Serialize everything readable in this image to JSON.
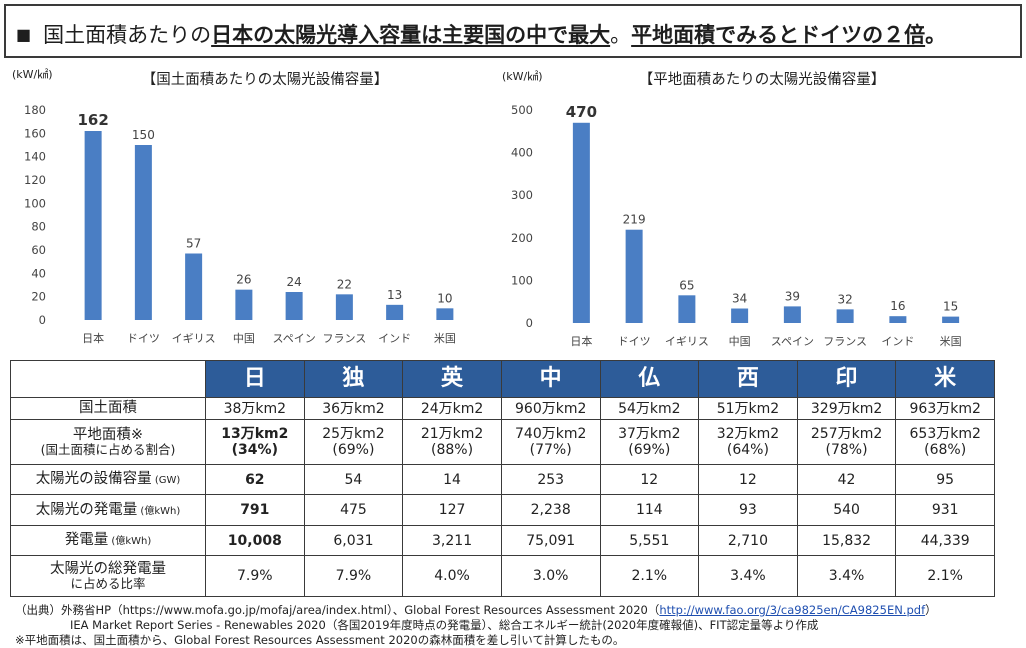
{
  "header": {
    "marker": "■",
    "part1": "国土面積あたりの",
    "part2": "日本の太陽光導入容量は主要国の中で最大",
    "part3": "。",
    "part4": "平地面積でみるとドイツの２倍",
    "part5": "。"
  },
  "chart_data": [
    {
      "type": "bar",
      "title": "【国土面積あたりの太陽光設備容量】",
      "unit": "(kW/㎢)",
      "categories": [
        "日本",
        "ドイツ",
        "イギリス",
        "中国",
        "スペイン",
        "フランス",
        "インド",
        "米国"
      ],
      "values": [
        162,
        150,
        57,
        26,
        24,
        22,
        13,
        10
      ],
      "value_labels": [
        "162",
        "150",
        "57",
        "26",
        "24",
        "22",
        "13",
        "10"
      ],
      "ylim": [
        0,
        180
      ],
      "yticks": [
        0,
        20,
        40,
        60,
        80,
        100,
        120,
        140,
        160,
        180
      ],
      "highlight_first": true,
      "color": "#4a7ec4"
    },
    {
      "type": "bar",
      "title": "【平地面積あたりの太陽光設備容量】",
      "unit": "(kW/㎢)",
      "categories": [
        "日本",
        "ドイツ",
        "イギリス",
        "中国",
        "スペイン",
        "フランス",
        "インド",
        "米国"
      ],
      "values": [
        470,
        219,
        65,
        34,
        39,
        32,
        16,
        15
      ],
      "value_labels": [
        "470",
        "219",
        "65",
        "34",
        "39",
        "32",
        "16",
        "15"
      ],
      "ylim": [
        0,
        500
      ],
      "yticks": [
        0,
        100,
        200,
        300,
        400,
        500
      ],
      "highlight_first": true,
      "color": "#4a7ec4"
    }
  ],
  "table": {
    "countries": [
      "日",
      "独",
      "英",
      "中",
      "仏",
      "西",
      "印",
      "米"
    ],
    "rows": [
      {
        "label": "国土面積",
        "label_small": "",
        "label_sub": "",
        "values": [
          "38万km2",
          "36万km2",
          "24万km2",
          "960万km2",
          "54万km2",
          "51万km2",
          "329万km2",
          "963万km2"
        ],
        "pcts": []
      },
      {
        "label": "平地面積※",
        "label_small": "",
        "label_sub": "(国土面積に占める割合)",
        "values": [
          "13万km2",
          "25万km2",
          "21万km2",
          "740万km2",
          "37万km2",
          "32万km2",
          "257万km2",
          "653万km2"
        ],
        "pcts": [
          "(34%)",
          "(69%)",
          "(88%)",
          "(77%)",
          "(69%)",
          "(64%)",
          "(78%)",
          "(68%)"
        ]
      },
      {
        "label": "太陽光の設備容量",
        "label_small": "(GW)",
        "label_sub": "",
        "values": [
          "62",
          "54",
          "14",
          "253",
          "12",
          "12",
          "42",
          "95"
        ],
        "pcts": []
      },
      {
        "label": "太陽光の発電量",
        "label_small": "(億kWh)",
        "label_sub": "",
        "values": [
          "791",
          "475",
          "127",
          "2,238",
          "114",
          "93",
          "540",
          "931"
        ],
        "pcts": []
      },
      {
        "label": "発電量",
        "label_small": "(億kWh)",
        "label_sub": "",
        "values": [
          "10,008",
          "6,031",
          "3,211",
          "75,091",
          "5,551",
          "2,710",
          "15,832",
          "44,339"
        ],
        "pcts": []
      },
      {
        "label": "太陽光の総発電量",
        "label_small": "",
        "label_sub": "に占める比率",
        "values": [
          "7.9%",
          "7.9%",
          "4.0%",
          "3.0%",
          "2.1%",
          "3.4%",
          "3.4%",
          "2.1%"
        ],
        "pcts": []
      }
    ]
  },
  "footer": {
    "line1_prefix": "（出典）外務省HP（https://www.mofa.go.jp/mofaj/area/index.html）、Global Forest Resources Assessment 2020（",
    "line1_link": "http://www.fao.org/3/ca9825en/CA9825EN.pdf",
    "line1_suffix": "）",
    "line2": "IEA Market Report Series - Renewables 2020（各国2019年度時点の発電量）、総合エネルギー統計(2020年度確報値)、FIT認定量等より作成",
    "line3": "※平地面積は、国土面積から、Global Forest Resources Assessment 2020の森林面積を差し引いて計算したもの。"
  }
}
